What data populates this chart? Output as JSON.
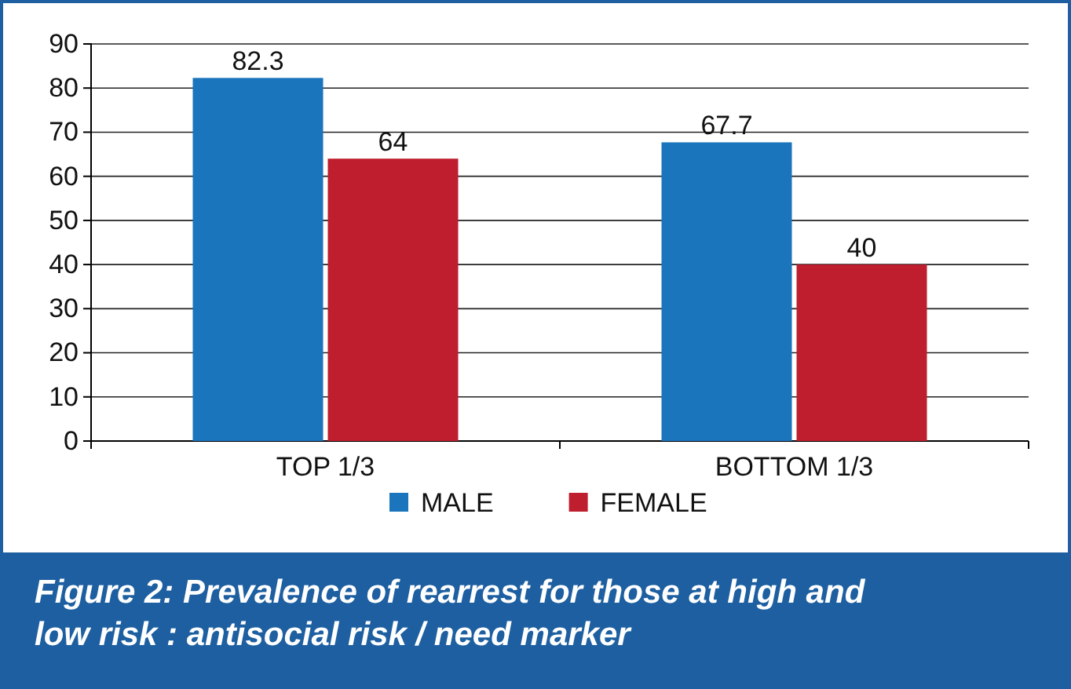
{
  "chart_data": {
    "type": "bar",
    "title": "Figure 2:  Prevalence of rearrest for those at high and low risk : antisocial risk / need marker",
    "categories": [
      "TOP 1/3",
      "BOTTOM 1/3"
    ],
    "series": [
      {
        "name": "MALE",
        "color": "#1b75bc",
        "values": [
          82.3,
          67.7
        ]
      },
      {
        "name": "FEMALE",
        "color": "#be1e2d",
        "values": [
          64,
          40
        ]
      }
    ],
    "ylim": [
      0,
      90
    ],
    "yticks": [
      0,
      10,
      20,
      30,
      40,
      50,
      60,
      70,
      80,
      90
    ],
    "grid": "y",
    "legend": "bottom",
    "data_labels": true
  }
}
